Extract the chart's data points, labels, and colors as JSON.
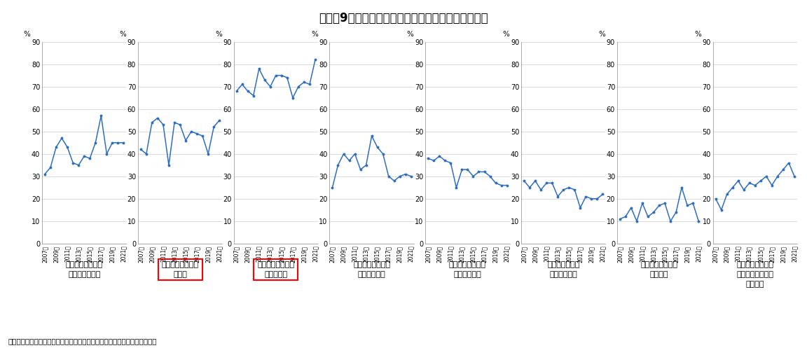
{
  "title": "図表－9　住宅購入を決めた理由（分譲マンション）",
  "source": "（出所）国土交通省「住宅市場動向調査」をもとにニッセイ基礎研究所作成",
  "line_color": "#2E6EBF",
  "background_color": "#FFFFFF",
  "subplots": [
    {
      "label": "住宅のデザインが\n気に入ったから",
      "years": [
        2007,
        2008,
        2009,
        2010,
        2011,
        2012,
        2013,
        2014,
        2015,
        2016,
        2017,
        2018,
        2019,
        2020,
        2021
      ],
      "values": [
        31,
        34,
        43,
        47,
        43,
        36,
        35,
        39,
        38,
        45,
        57,
        40,
        45,
        45,
        45
      ],
      "ylim": [
        0,
        90
      ],
      "box": false
    },
    {
      "label": "住宅の広さが十分\nだから",
      "years": [
        2007,
        2008,
        2009,
        2010,
        2011,
        2012,
        2013,
        2014,
        2015,
        2016,
        2017,
        2018,
        2019,
        2020,
        2021
      ],
      "values": [
        42,
        40,
        54,
        56,
        53,
        35,
        54,
        53,
        46,
        50,
        49,
        48,
        40,
        52,
        55
      ],
      "ylim": [
        0,
        90
      ],
      "box": true
    },
    {
      "label": "間取り・部屋数が\n適当だから",
      "years": [
        2007,
        2008,
        2009,
        2010,
        2011,
        2012,
        2013,
        2014,
        2015,
        2016,
        2017,
        2018,
        2019,
        2020,
        2021
      ],
      "values": [
        68,
        71,
        68,
        66,
        78,
        73,
        70,
        75,
        75,
        74,
        65,
        70,
        72,
        71,
        82
      ],
      "ylim": [
        0,
        90
      ],
      "box": true
    },
    {
      "label": "台所の設備・広さ\nが十分だから",
      "years": [
        2007,
        2008,
        2009,
        2010,
        2011,
        2012,
        2013,
        2014,
        2015,
        2016,
        2017,
        2018,
        2019,
        2020,
        2021
      ],
      "values": [
        25,
        35,
        40,
        37,
        40,
        33,
        35,
        48,
        43,
        40,
        30,
        28,
        30,
        31,
        30
      ],
      "ylim": [
        0,
        90
      ],
      "box": false
    },
    {
      "label": "浴室の設備・広さ\nが十分だから",
      "years": [
        2007,
        2008,
        2009,
        2010,
        2011,
        2012,
        2013,
        2014,
        2015,
        2016,
        2017,
        2018,
        2019,
        2020,
        2021
      ],
      "values": [
        38,
        37,
        39,
        37,
        36,
        25,
        33,
        33,
        30,
        32,
        32,
        30,
        27,
        26,
        26
      ],
      "ylim": [
        0,
        90
      ],
      "box": false
    },
    {
      "label": "高齢者等への配\n慮がよいから",
      "years": [
        2007,
        2008,
        2009,
        2010,
        2011,
        2012,
        2013,
        2014,
        2015,
        2016,
        2017,
        2018,
        2019,
        2020,
        2021
      ],
      "values": [
        28,
        25,
        28,
        24,
        27,
        27,
        21,
        24,
        25,
        24,
        16,
        21,
        20,
        20,
        22
      ],
      "ylim": [
        0,
        90
      ],
      "box": false
    },
    {
      "label": "高気密・高断熱住\n宅だから",
      "years": [
        2007,
        2008,
        2009,
        2010,
        2011,
        2012,
        2013,
        2014,
        2015,
        2016,
        2017,
        2018,
        2019,
        2020,
        2021
      ],
      "values": [
        11,
        12,
        16,
        10,
        18,
        12,
        14,
        17,
        18,
        10,
        14,
        25,
        17,
        18,
        10
      ],
      "ylim": [
        0,
        90
      ],
      "box": false
    },
    {
      "label": "火災・地震・水害\nなどへの安全性が\n高いから",
      "years": [
        2007,
        2008,
        2009,
        2010,
        2011,
        2012,
        2013,
        2014,
        2015,
        2016,
        2017,
        2018,
        2019,
        2020,
        2021
      ],
      "values": [
        20,
        15,
        22,
        25,
        28,
        24,
        27,
        26,
        28,
        30,
        26,
        30,
        33,
        36,
        30
      ],
      "ylim": [
        0,
        90
      ],
      "box": false
    }
  ]
}
